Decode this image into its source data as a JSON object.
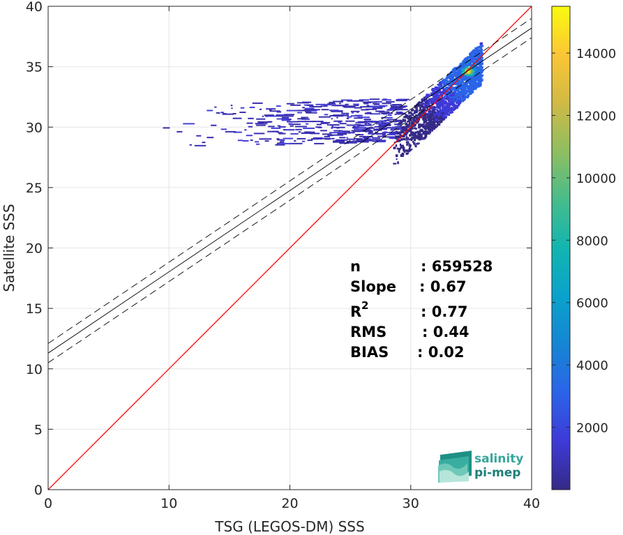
{
  "chart_data": {
    "type": "heatmap",
    "xlabel": "TSG (LEGOS-DM) SSS",
    "ylabel": "Satellite SSS",
    "xlim": [
      0,
      40
    ],
    "ylim": [
      0,
      40
    ],
    "xticks": [
      "0",
      "10",
      "20",
      "30",
      "40"
    ],
    "yticks": [
      "0",
      "5",
      "10",
      "15",
      "20",
      "25",
      "30",
      "35",
      "40"
    ],
    "grid": true,
    "colorbar": {
      "range": [
        0,
        15500
      ],
      "ticks": [
        "2000",
        "4000",
        "6000",
        "8000",
        "10000",
        "12000",
        "14000"
      ],
      "colormap": "parula"
    },
    "identity_line": {
      "from": [
        0,
        0
      ],
      "to": [
        40,
        40
      ],
      "color": "#ff0000"
    },
    "regression_line": {
      "intercept_at_x0": 11.3,
      "y_at_x40": 38.2,
      "color": "#000000"
    },
    "confidence_band_lines": [
      {
        "intercept_at_x0": 12.1,
        "y_at_x40": 39.0,
        "style": "dashed"
      },
      {
        "intercept_at_x0": 10.5,
        "y_at_x40": 37.4,
        "style": "dashed"
      }
    ],
    "density_core": {
      "x": 34.7,
      "y": 34.7,
      "peak_count": 15000
    },
    "stats": {
      "n_label": "n",
      "n_value": ": 659528",
      "slope_label": "Slope",
      "slope_value": ": 0.67",
      "r2_label": "R",
      "r2_sup": "2",
      "r2_value": ": 0.77",
      "rms_label": "RMS",
      "rms_value": ": 0.44",
      "bias_label": "BIAS",
      "bias_value": ": 0.02"
    }
  },
  "logo": {
    "line1": "salinity",
    "line2": "pi-mep"
  },
  "colors": {
    "axis": "#262626",
    "grid": "#e6e6e6",
    "identity": "#ff0000"
  }
}
